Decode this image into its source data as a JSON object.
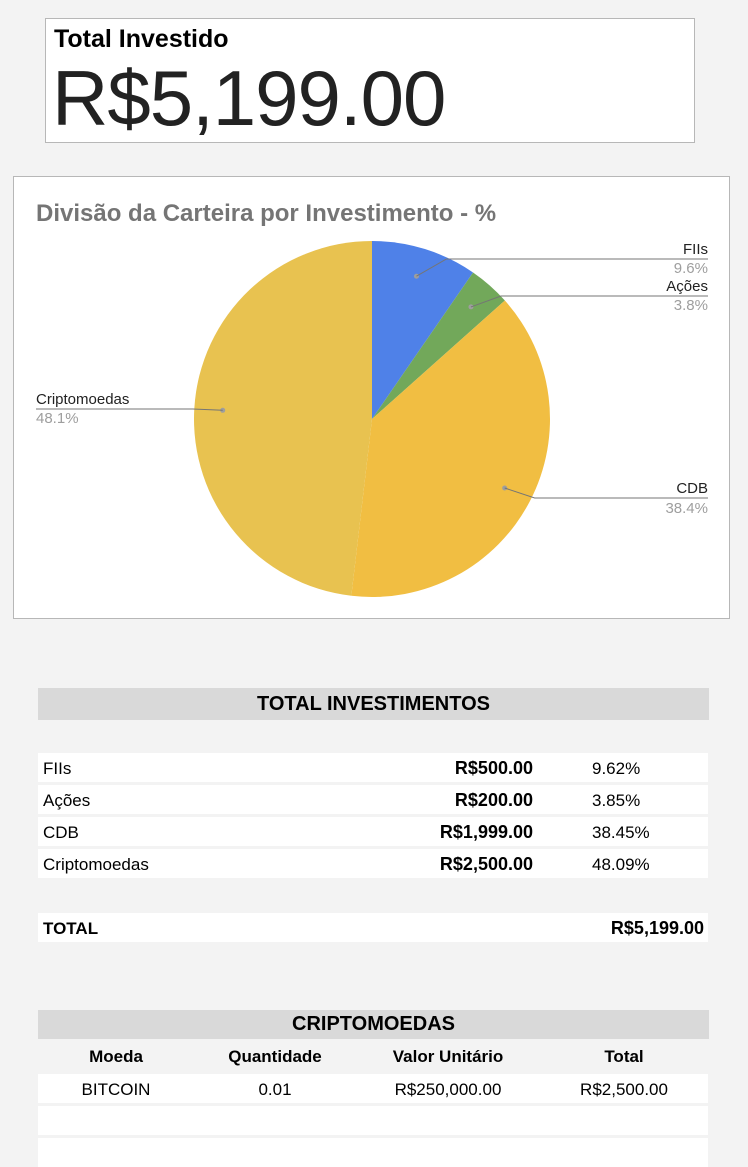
{
  "summary": {
    "label": "Total Investido",
    "amount": "R$5,199.00"
  },
  "chart_data": {
    "type": "pie",
    "title": "Divisão da Carteira por Investimento - %",
    "slices": [
      {
        "name": "FIIs",
        "value": 9.6,
        "label_pct": "9.6%",
        "color": "#4f81e8"
      },
      {
        "name": "Ações",
        "value": 3.8,
        "label_pct": "3.8%",
        "color": "#72a85a"
      },
      {
        "name": "CDB",
        "value": 38.4,
        "label_pct": "38.4%",
        "color": "#f1be42"
      },
      {
        "name": "Criptomoedas",
        "value": 48.1,
        "label_pct": "48.1%",
        "color": "#e8c250"
      }
    ],
    "legend": "labels"
  },
  "investments": {
    "header": "TOTAL INVESTIMENTOS",
    "rows": [
      {
        "name": "FIIs",
        "value": "R$500.00",
        "pct": "9.62%"
      },
      {
        "name": "Ações",
        "value": "R$200.00",
        "pct": "3.85%"
      },
      {
        "name": "CDB",
        "value": "R$1,999.00",
        "pct": "38.45%"
      },
      {
        "name": "Criptomoedas",
        "value": "R$2,500.00",
        "pct": "48.09%"
      }
    ],
    "total_label": "TOTAL",
    "total_value": "R$5,199.00"
  },
  "crypto": {
    "header": "CRIPTOMOEDAS",
    "columns": [
      "Moeda",
      "Quantidade",
      "Valor Unitário",
      "Total"
    ],
    "rows": [
      {
        "coin": "BITCOIN",
        "qty": "0.01",
        "unit": "R$250,000.00",
        "total": "R$2,500.00"
      }
    ]
  }
}
